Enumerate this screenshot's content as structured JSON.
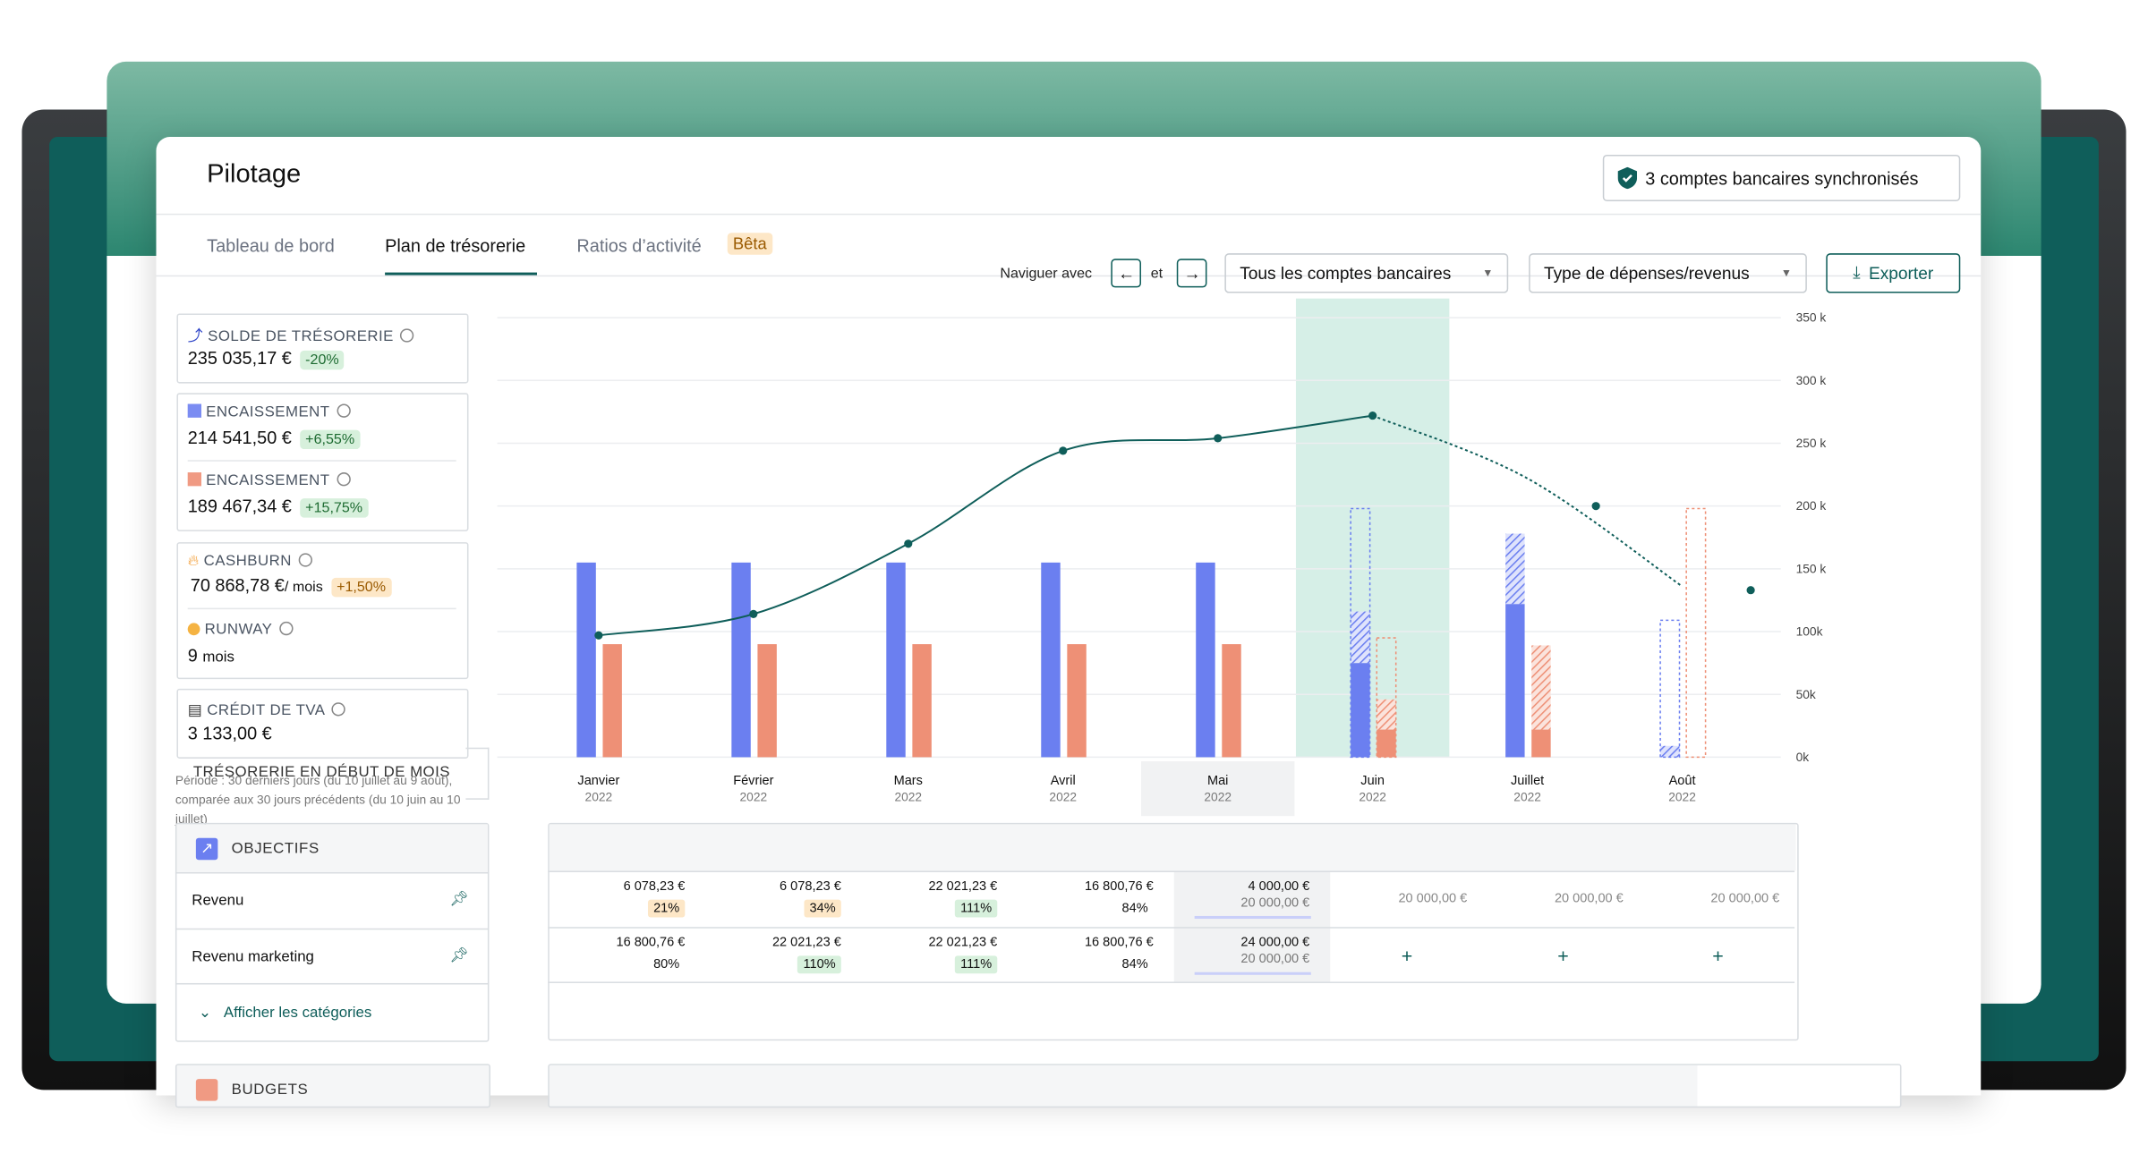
{
  "header": {
    "title": "Pilotage",
    "sync": "3 comptes bancaires synchronisés"
  },
  "tabs": {
    "items": [
      "Tableau de bord",
      "Plan de trésorerie",
      "Ratios d’activité"
    ],
    "beta": "Bêta"
  },
  "toolbar": {
    "navigate": "Naviguer avec",
    "and": "et",
    "accounts": "Tous les comptes bancaires",
    "type": "Type de dépenses/revenus",
    "export": "Exporter"
  },
  "kpis": [
    {
      "label": "SOLDE DE TRÉSORERIE",
      "value": "235 035,17 €",
      "change": "-20%"
    },
    {
      "label": "ENCAISSEMENT",
      "value": "214 541,50 €",
      "change": "+6,55%"
    },
    {
      "label": "ENCAISSEMENT",
      "value": "189 467,34 €",
      "change": "+15,75%"
    },
    {
      "label": "CASHBURN",
      "value": "70 868,78 €",
      "unit": "/ mois",
      "change": "+1,50%"
    },
    {
      "label": "RUNWAY",
      "value": "9",
      "unit": "mois"
    },
    {
      "label": "CRÉDIT DE TVA",
      "value": "3 133,00 €"
    }
  ],
  "period": {
    "title": "TRÉSORERIE EN DÉBUT DE MOIS",
    "note": "Période : 30 derniers jours (du 10 juillet au 9 août), comparée aux 30 jours précédents (du 10 juin au 10 juillet)"
  },
  "objectives": {
    "title": "OBJECTIFS",
    "rows": [
      "Revenu",
      "Revenu marketing"
    ],
    "toggle": "Afficher les catégories",
    "budgets": "BUDGETS"
  },
  "chart": {
    "type": "bar",
    "categories": [
      "Janvier",
      "Février",
      "Mars",
      "Avril",
      "Mai",
      "Juin",
      "Juillet",
      "Août"
    ],
    "years": [
      "2022",
      "2022",
      "2022",
      "2022",
      "2022",
      "2022",
      "2022",
      "2022"
    ],
    "highlight": "Juin",
    "selected": "Mai",
    "ylim": [
      0,
      350
    ],
    "yticks": [
      {
        "value": 0,
        "label": "0k"
      },
      {
        "value": 50,
        "label": "50k"
      },
      {
        "value": 100,
        "label": "100k"
      },
      {
        "value": 150,
        "label": "150 k"
      },
      {
        "value": 200,
        "label": "200 k"
      },
      {
        "value": 250,
        "label": "250 k"
      },
      {
        "value": 300,
        "label": "300 k"
      },
      {
        "value": 350,
        "label": "350 k"
      }
    ],
    "grid": true,
    "bars": [
      {
        "side": "in",
        "style": "solid",
        "color": "#6b7ff0",
        "values": [
          155,
          155,
          155,
          155,
          155,
          75,
          122,
          null
        ]
      },
      {
        "side": "in",
        "style": "hatch",
        "color": "#6b7ff0",
        "values": [
          null,
          null,
          null,
          null,
          null,
          41,
          56,
          9
        ]
      },
      {
        "side": "in",
        "style": "dashed",
        "color": "#6b7ff0",
        "values": [
          null,
          null,
          null,
          null,
          null,
          198,
          null,
          109
        ]
      },
      {
        "side": "out",
        "style": "solid",
        "color": "#ee9076",
        "values": [
          90,
          90,
          90,
          90,
          90,
          22,
          22,
          null
        ]
      },
      {
        "side": "out",
        "style": "hatch",
        "color": "#ee9076",
        "values": [
          null,
          null,
          null,
          null,
          null,
          24,
          67,
          null
        ]
      },
      {
        "side": "out",
        "style": "dashed",
        "color": "#ee9076",
        "values": [
          null,
          null,
          null,
          null,
          null,
          95,
          null,
          198
        ]
      }
    ],
    "lines": [
      {
        "style": "solid",
        "color": "#0f5e5a",
        "values": [
          97,
          114,
          170,
          244,
          254,
          272,
          null,
          null
        ]
      },
      {
        "style": "dashed",
        "color": "#0f5e5a",
        "values": [
          null,
          null,
          null,
          null,
          null,
          272,
          222,
          136
        ]
      }
    ],
    "dots": {
      "color": "#0f5e5a",
      "values": [
        null,
        null,
        null,
        null,
        null,
        null,
        200,
        133
      ]
    }
  },
  "table": {
    "rows": [
      {
        "cells": [
          {
            "amount": "6 078,23 €",
            "ratio": "21%",
            "tone": "warn"
          },
          {
            "amount": "6 078,23 €",
            "ratio": "34%",
            "tone": "warn"
          },
          {
            "amount": "22 021,23 €",
            "ratio": "111%",
            "tone": "good"
          },
          {
            "amount": "16 800,76 €",
            "ratio": "84%",
            "tone": "plain"
          },
          {
            "amount": "4 000,00 €",
            "target": "20 000,00 €"
          }
        ],
        "placeholders": [
          "20 000,00 €",
          "20 000,00 €",
          "20 000,00 €"
        ]
      },
      {
        "cells": [
          {
            "amount": "16 800,76 €",
            "ratio": "80%",
            "tone": "plain"
          },
          {
            "amount": "22 021,23 €",
            "ratio": "110%",
            "tone": "good"
          },
          {
            "amount": "22 021,23 €",
            "ratio": "111%",
            "tone": "good"
          },
          {
            "amount": "16 800,76 €",
            "ratio": "84%",
            "tone": "plain"
          },
          {
            "amount": "24 000,00 €",
            "target": "20 000,00 €"
          }
        ]
      }
    ]
  }
}
